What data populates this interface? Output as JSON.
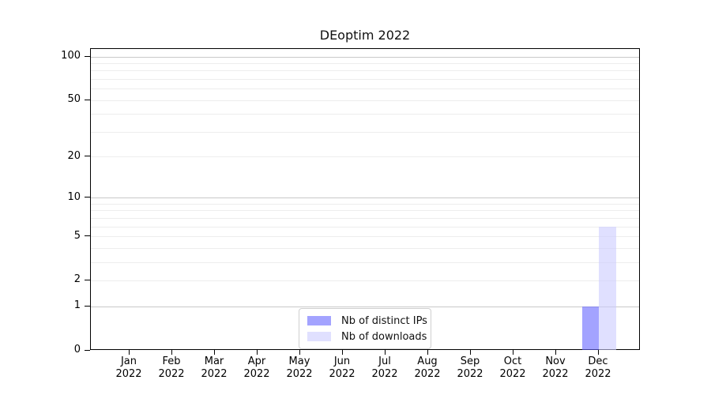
{
  "chart_data": {
    "type": "bar",
    "title": "DEoptim 2022",
    "categories": [
      "Jan",
      "Feb",
      "Mar",
      "Apr",
      "May",
      "Jun",
      "Jul",
      "Aug",
      "Sep",
      "Oct",
      "Nov",
      "Dec"
    ],
    "year_label": "2022",
    "series": [
      {
        "name": "Nb of distinct IPs",
        "color": "rgba(102,102,255,0.6)",
        "values": [
          0,
          0,
          0,
          0,
          0,
          0,
          0,
          0,
          0,
          0,
          0,
          1
        ]
      },
      {
        "name": "Nb of downloads",
        "color": "rgba(204,204,255,0.6)",
        "values": [
          0,
          0,
          0,
          0,
          0,
          0,
          0,
          0,
          0,
          0,
          0,
          6
        ]
      }
    ],
    "yscale": "log1p",
    "ylim": [
      0,
      100
    ],
    "yticks": [
      0,
      1,
      2,
      5,
      10,
      20,
      50,
      100
    ],
    "grid": "horizontal major+minor, log decades",
    "grid_major_values": [
      1,
      10,
      100
    ],
    "grid_major_color": "#c9c9c9",
    "grid_minor_color": "#ededed",
    "legend_position": "inside bottom-center",
    "xlabel": "",
    "ylabel": ""
  }
}
